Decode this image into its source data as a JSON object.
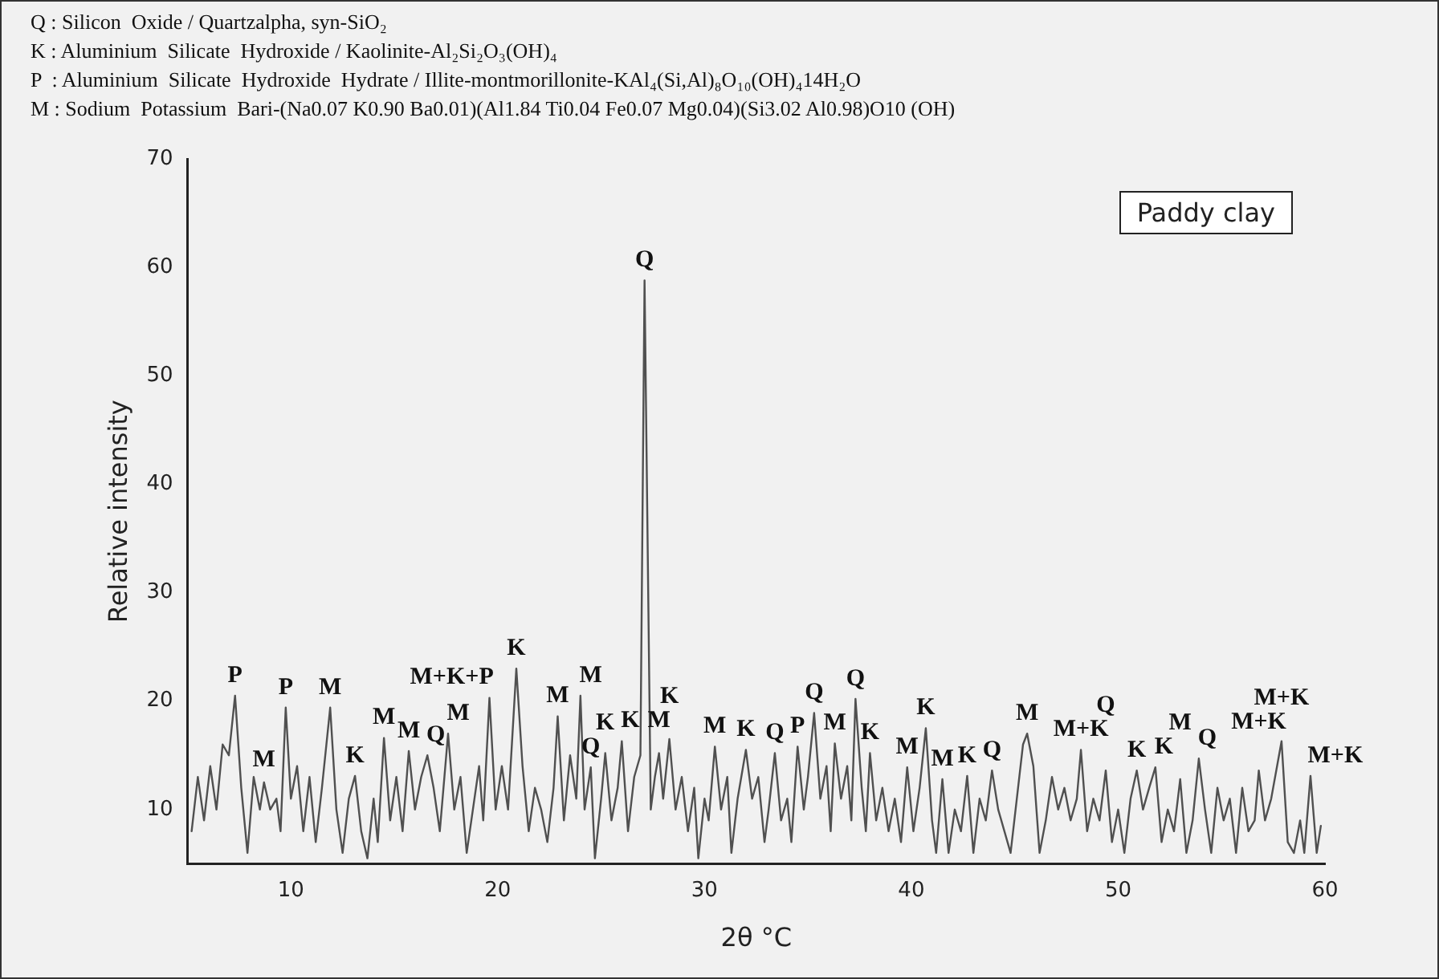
{
  "chart_data": {
    "type": "line",
    "xlabel": "2θ °C",
    "ylabel": "Relative intensity",
    "xlim": [
      5,
      60
    ],
    "xticks": [
      10,
      20,
      30,
      40,
      50,
      60
    ],
    "ylim": [
      5,
      70
    ],
    "yticks": [
      10,
      20,
      30,
      40,
      50,
      60,
      70
    ],
    "grid": false,
    "legend": "top right",
    "marker": "none",
    "line_style": "solid",
    "series": [
      {
        "name": "Paddy clay",
        "color": "#505050",
        "x": [
          5.2,
          5.5,
          5.8,
          6.1,
          6.4,
          6.7,
          7.0,
          7.3,
          7.6,
          7.9,
          8.2,
          8.5,
          8.7,
          9.0,
          9.3,
          9.5,
          9.75,
          10.0,
          10.3,
          10.6,
          10.9,
          11.2,
          11.5,
          11.9,
          12.2,
          12.5,
          12.8,
          13.1,
          13.4,
          13.7,
          14.0,
          14.2,
          14.5,
          14.8,
          15.1,
          15.4,
          15.7,
          16.0,
          16.3,
          16.6,
          16.9,
          17.2,
          17.6,
          17.9,
          18.2,
          18.5,
          18.8,
          19.1,
          19.3,
          19.6,
          19.9,
          20.2,
          20.5,
          20.9,
          21.2,
          21.5,
          21.8,
          22.1,
          22.4,
          22.7,
          22.9,
          23.2,
          23.5,
          23.8,
          24.0,
          24.2,
          24.5,
          24.7,
          25.0,
          25.2,
          25.5,
          25.8,
          26.0,
          26.3,
          26.6,
          26.9,
          27.1,
          27.4,
          27.6,
          27.8,
          28.0,
          28.3,
          28.6,
          28.9,
          29.2,
          29.5,
          29.7,
          30.0,
          30.2,
          30.5,
          30.8,
          31.1,
          31.3,
          31.6,
          32.0,
          32.3,
          32.6,
          32.9,
          33.1,
          33.4,
          33.7,
          34.0,
          34.2,
          34.5,
          34.8,
          35.0,
          35.3,
          35.6,
          35.9,
          36.1,
          36.3,
          36.6,
          36.9,
          37.1,
          37.3,
          37.6,
          37.8,
          38.0,
          38.3,
          38.6,
          38.9,
          39.2,
          39.5,
          39.8,
          40.1,
          40.4,
          40.7,
          41.0,
          41.2,
          41.5,
          41.8,
          42.1,
          42.4,
          42.7,
          43.0,
          43.3,
          43.6,
          43.9,
          44.2,
          44.5,
          44.8,
          45.1,
          45.4,
          45.6,
          45.9,
          46.2,
          46.5,
          46.8,
          47.1,
          47.4,
          47.7,
          48.0,
          48.2,
          48.5,
          48.8,
          49.1,
          49.4,
          49.7,
          50.0,
          50.3,
          50.6,
          50.9,
          51.2,
          51.5,
          51.8,
          52.1,
          52.4,
          52.7,
          53.0,
          53.3,
          53.6,
          53.9,
          54.2,
          54.5,
          54.8,
          55.1,
          55.4,
          55.7,
          56.0,
          56.3,
          56.6,
          56.8,
          57.1,
          57.4,
          57.9,
          58.2,
          58.5,
          58.8,
          59.0,
          59.3,
          59.6,
          59.8
        ],
        "values": [
          8,
          13,
          9,
          14,
          10,
          16,
          15,
          20.5,
          12,
          6,
          13,
          10,
          12.5,
          10,
          11,
          8,
          19.4,
          11,
          14,
          8,
          13,
          7,
          12,
          19.4,
          10,
          6,
          11,
          13.1,
          8,
          5.5,
          11,
          7,
          16.6,
          9,
          13,
          8,
          15.4,
          10,
          13,
          15,
          12,
          8,
          17,
          10,
          13,
          6,
          10,
          14,
          9,
          20.3,
          10,
          14,
          10,
          23,
          14,
          8,
          12,
          10,
          7,
          12,
          18.6,
          9,
          15,
          11,
          20.5,
          10,
          13.9,
          5.5,
          11,
          15.2,
          9,
          12,
          16.3,
          8,
          13,
          15,
          58.8,
          10,
          13,
          15.2,
          11,
          16.5,
          10,
          13,
          8,
          12,
          5.5,
          11,
          9,
          15.8,
          10,
          13,
          6,
          11,
          15.5,
          11,
          13,
          7,
          10,
          15.2,
          9,
          11,
          7,
          15.8,
          10,
          13,
          18.9,
          11,
          14,
          8,
          16.1,
          11,
          14,
          9,
          20.2,
          12,
          8,
          15.2,
          9,
          12,
          8,
          11,
          7,
          13.9,
          8,
          12,
          17.5,
          9,
          6,
          12.8,
          6,
          10,
          8,
          13.1,
          6,
          11,
          9,
          13.6,
          10,
          8,
          6,
          11,
          16,
          17,
          14,
          6,
          9,
          13,
          10,
          12,
          9,
          11,
          15.5,
          8,
          11,
          9,
          13.6,
          7,
          10,
          6,
          11,
          13.6,
          10,
          12,
          13.9,
          7,
          10,
          8,
          12.8,
          6,
          9,
          14.7,
          10,
          6,
          12,
          9,
          11,
          6,
          12,
          8,
          9,
          13.6,
          9,
          11,
          16.3,
          7,
          6,
          9,
          6,
          13.1,
          6,
          8.5
        ]
      }
    ],
    "annotations": [
      "Q : Silicon  Oxide / Quartzalpha, syn-SiO₂",
      "K : Aluminium  Silicate  Hydroxide / Kaolinite-Al₂Si₂O₃(OH)₄",
      "P  : Aluminium  Silicate  Hydroxide  Hydrate / Illite-montmorillonite-KAl₄(Si,Al)₈O₁₀(OH)₄14H₂O",
      "M : Sodium  Potassium  Bari-(Na0.07 K0.90 Ba0.01)(Al1.84 Ti0.04 Fe0.07 Mg0.04)(Si3.02 Al0.98)O10 (OH)",
      {
        "text": "P",
        "x": 7.3,
        "y": 20.5
      },
      {
        "text": "M",
        "x": 8.7,
        "y": 12.5
      },
      {
        "text": "P",
        "x": 9.75,
        "y": 19.4
      },
      {
        "text": "M",
        "x": 11.9,
        "y": 19.4
      },
      {
        "text": "K",
        "x": 13.1,
        "y": 13.1
      },
      {
        "text": "M",
        "x": 14.5,
        "y": 16.6
      },
      {
        "text": "M",
        "x": 15.7,
        "y": 15.4
      },
      {
        "text": "Q",
        "x": 16.6,
        "y": 15
      },
      {
        "text": "M",
        "x": 17.6,
        "y": 17
      },
      {
        "text": "M+K+P",
        "x": 19.6,
        "y": 20.3
      },
      {
        "text": "K",
        "x": 20.9,
        "y": 23
      },
      {
        "text": "M",
        "x": 22.9,
        "y": 18.6
      },
      {
        "text": "M",
        "x": 24.0,
        "y": 20.5
      },
      {
        "text": "Q",
        "x": 24.5,
        "y": 13.9
      },
      {
        "text": "K",
        "x": 25.2,
        "y": 15.2
      },
      {
        "text": "K",
        "x": 26.0,
        "y": 16.3
      },
      {
        "text": "Q",
        "x": 27.1,
        "y": 58.8
      },
      {
        "text": "M",
        "x": 27.8,
        "y": 15.2
      },
      {
        "text": "K",
        "x": 28.3,
        "y": 16.5
      },
      {
        "text": "M",
        "x": 30.5,
        "y": 15.8
      },
      {
        "text": "K",
        "x": 32.0,
        "y": 15.5
      },
      {
        "text": "Q",
        "x": 33.4,
        "y": 15.2
      },
      {
        "text": "P",
        "x": 34.5,
        "y": 15.8
      },
      {
        "text": "Q",
        "x": 35.3,
        "y": 18.9
      },
      {
        "text": "M",
        "x": 36.3,
        "y": 16.1
      },
      {
        "text": "Q",
        "x": 37.3,
        "y": 20.2
      },
      {
        "text": "K",
        "x": 38.0,
        "y": 15.2
      },
      {
        "text": "M",
        "x": 39.8,
        "y": 13.9
      },
      {
        "text": "K",
        "x": 40.7,
        "y": 17.5
      },
      {
        "text": "M",
        "x": 41.5,
        "y": 12.8
      },
      {
        "text": "K",
        "x": 42.7,
        "y": 13.1
      },
      {
        "text": "Q",
        "x": 43.9,
        "y": 13.6
      },
      {
        "text": "M",
        "x": 45.6,
        "y": 17
      },
      {
        "text": "M+K",
        "x": 48.2,
        "y": 15.5
      },
      {
        "text": "Q",
        "x": 49.4,
        "y": 13.6
      },
      {
        "text": "K",
        "x": 50.9,
        "y": 13.6
      },
      {
        "text": "K",
        "x": 51.8,
        "y": 13.9
      },
      {
        "text": "M",
        "x": 53.0,
        "y": 12.8
      },
      {
        "text": "Q",
        "x": 53.9,
        "y": 14.7
      },
      {
        "text": "M+K",
        "x": 56.8,
        "y": 13.6
      },
      {
        "text": "M+K",
        "x": 57.9,
        "y": 16.3
      },
      {
        "text": "M+K",
        "x": 59.3,
        "y": 13.1
      }
    ]
  }
}
